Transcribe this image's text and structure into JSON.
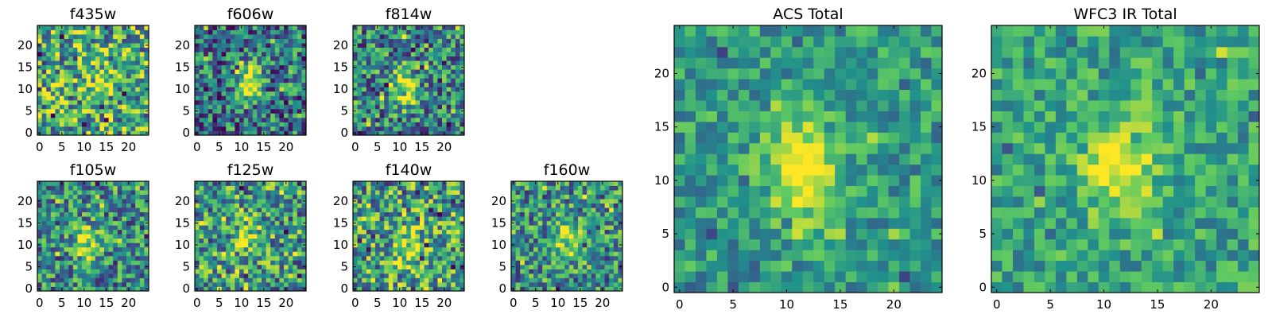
{
  "chart_data": [
    {
      "type": "heatmap",
      "title": "f435w",
      "xlim": [
        -0.5,
        24.5
      ],
      "ylim": [
        -0.5,
        24.5
      ],
      "xticks": [
        0,
        5,
        10,
        15,
        20
      ],
      "yticks": [
        0,
        5,
        10,
        15,
        20
      ],
      "peak": [
        14,
        12
      ],
      "peak_strength": 0.22,
      "noise": 0.42,
      "mean": 0.6,
      "seed": 11
    },
    {
      "type": "heatmap",
      "title": "f606w",
      "xlim": [
        -0.5,
        24.5
      ],
      "ylim": [
        -0.5,
        24.5
      ],
      "xticks": [
        0,
        5,
        10,
        15,
        20
      ],
      "yticks": [
        0,
        5,
        10,
        15,
        20
      ],
      "peak": [
        11.5,
        11
      ],
      "peak_strength": 0.55,
      "noise": 0.38,
      "mean": 0.4,
      "seed": 23
    },
    {
      "type": "heatmap",
      "title": "f814w",
      "xlim": [
        -0.5,
        24.5
      ],
      "ylim": [
        -0.5,
        24.5
      ],
      "xticks": [
        0,
        5,
        10,
        15,
        20
      ],
      "yticks": [
        0,
        5,
        10,
        15,
        20
      ],
      "peak": [
        11,
        10.5
      ],
      "peak_strength": 0.55,
      "noise": 0.38,
      "mean": 0.45,
      "seed": 37
    },
    {
      "type": "heatmap",
      "title": "f105w",
      "xlim": [
        -0.5,
        24.5
      ],
      "ylim": [
        -0.5,
        24.5
      ],
      "xticks": [
        0,
        5,
        10,
        15,
        20
      ],
      "yticks": [
        0,
        5,
        10,
        15,
        20
      ],
      "peak": [
        11,
        10
      ],
      "peak_strength": 0.4,
      "noise": 0.35,
      "mean": 0.48,
      "seed": 41
    },
    {
      "type": "heatmap",
      "title": "f125w",
      "xlim": [
        -0.5,
        24.5
      ],
      "ylim": [
        -0.5,
        24.5
      ],
      "xticks": [
        0,
        5,
        10,
        15,
        20
      ],
      "yticks": [
        0,
        5,
        10,
        15,
        20
      ],
      "peak": [
        12,
        11
      ],
      "peak_strength": 0.3,
      "noise": 0.4,
      "mean": 0.55,
      "seed": 53
    },
    {
      "type": "heatmap",
      "title": "f140w",
      "xlim": [
        -0.5,
        24.5
      ],
      "ylim": [
        -0.5,
        24.5
      ],
      "xticks": [
        0,
        5,
        10,
        15,
        20
      ],
      "yticks": [
        0,
        5,
        10,
        15,
        20
      ],
      "peak": [
        12,
        10
      ],
      "peak_strength": 0.35,
      "noise": 0.4,
      "mean": 0.58,
      "seed": 67
    },
    {
      "type": "heatmap",
      "title": "f160w",
      "xlim": [
        -0.5,
        24.5
      ],
      "ylim": [
        -0.5,
        24.5
      ],
      "xticks": [
        0,
        5,
        10,
        15,
        20
      ],
      "yticks": [
        0,
        5,
        10,
        15,
        20
      ],
      "peak": [
        12,
        12
      ],
      "peak_strength": 0.4,
      "noise": 0.36,
      "mean": 0.5,
      "seed": 79
    },
    {
      "type": "heatmap",
      "title": "ACS Total",
      "xlim": [
        -0.5,
        24.5
      ],
      "ylim": [
        -0.5,
        24.5
      ],
      "xticks": [
        0,
        5,
        10,
        15,
        20
      ],
      "yticks": [
        0,
        5,
        10,
        15,
        20
      ],
      "peak": [
        11.5,
        11
      ],
      "peak_strength": 0.55,
      "noise": 0.22,
      "mean": 0.55,
      "seed": 91
    },
    {
      "type": "heatmap",
      "title": "WFC3 IR Total",
      "xlim": [
        -0.5,
        24.5
      ],
      "ylim": [
        -0.5,
        24.5
      ],
      "xticks": [
        0,
        5,
        10,
        15,
        20
      ],
      "yticks": [
        0,
        5,
        10,
        15,
        20
      ],
      "peak": [
        11.5,
        11.5
      ],
      "peak_strength": 0.5,
      "noise": 0.22,
      "mean": 0.58,
      "seed": 103
    }
  ],
  "colormap": [
    "#440154",
    "#3b528b",
    "#21918c",
    "#5ec962",
    "#fde725"
  ]
}
